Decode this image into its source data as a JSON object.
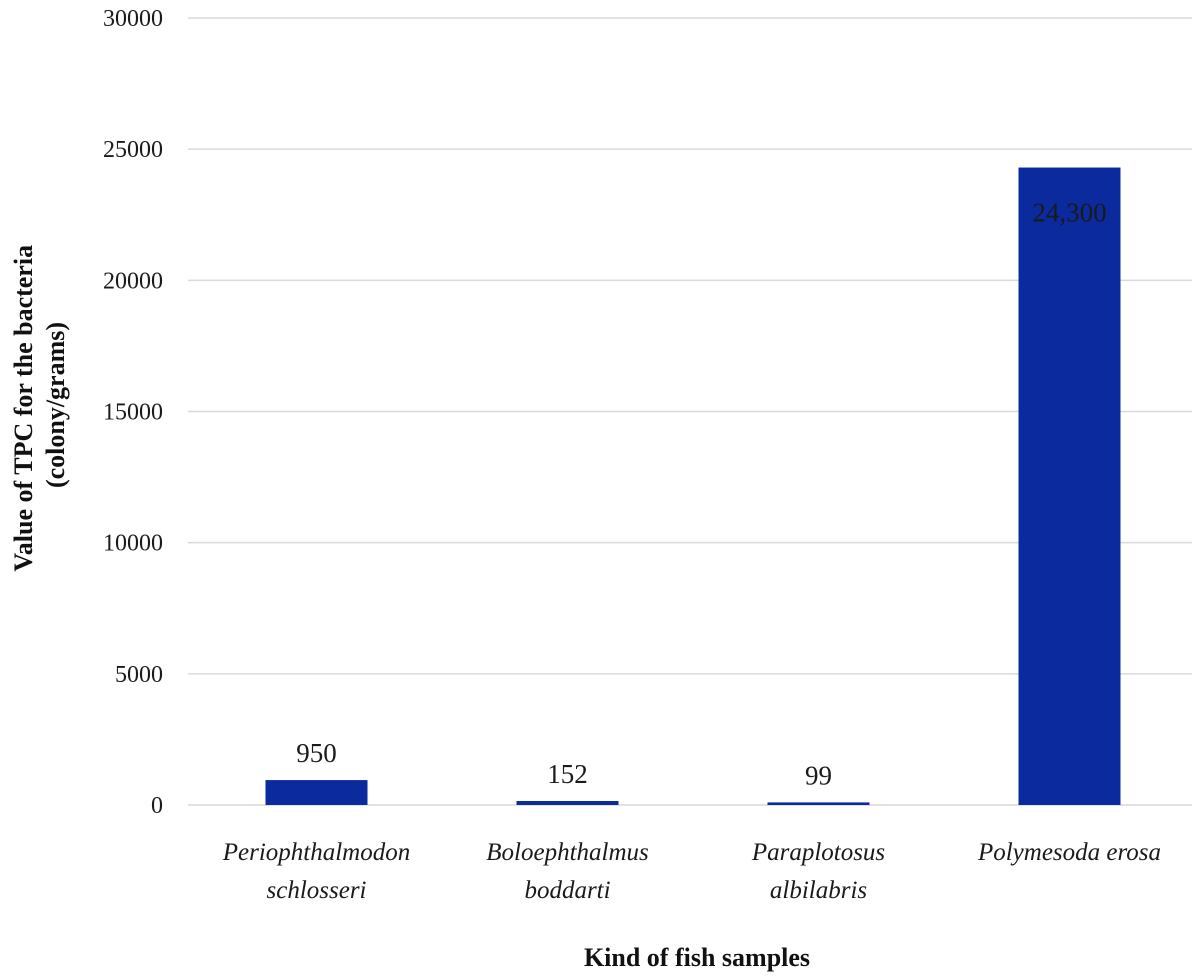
{
  "chart_data": {
    "type": "bar",
    "categories": [
      [
        "Periophthalmodon",
        "schlosseri"
      ],
      [
        "Boloephthalmus",
        "boddarti"
      ],
      [
        "Paraplotosus",
        "albilabris"
      ],
      [
        "Polymesoda erosa"
      ]
    ],
    "values": [
      950,
      152,
      99,
      24300
    ],
    "data_labels": [
      "950",
      "152",
      "99",
      "24,300"
    ],
    "xlabel": "Kind of fish samples",
    "ylabel": [
      "Value of TPC for the bacteria",
      "(colony/grams)"
    ],
    "ylim": [
      0,
      30000
    ],
    "yticks": [
      0,
      5000,
      10000,
      15000,
      20000,
      25000,
      30000
    ],
    "grid": true,
    "legend": "none",
    "colors": {
      "bar": "#0a2a9e",
      "grid": "#d9d9d9",
      "text": "#1a1a1a"
    }
  }
}
